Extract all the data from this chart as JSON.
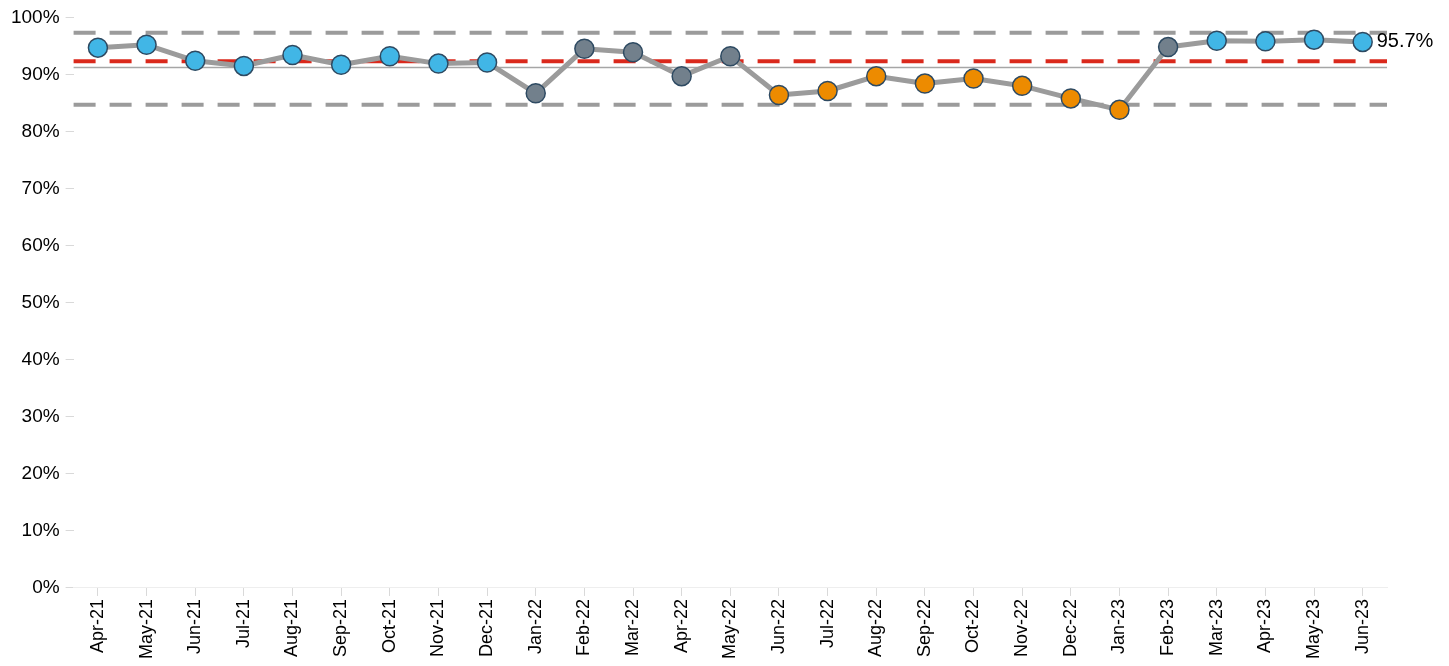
{
  "chart_data": {
    "type": "line",
    "categories": [
      "Apr-21",
      "May-21",
      "Jun-21",
      "Jul-21",
      "Aug-21",
      "Sep-21",
      "Oct-21",
      "Nov-21",
      "Dec-21",
      "Jan-22",
      "Feb-22",
      "Mar-22",
      "Apr-22",
      "May-22",
      "Jun-22",
      "Jul-22",
      "Aug-22",
      "Sep-22",
      "Oct-22",
      "Nov-22",
      "Dec-22",
      "Jan-23",
      "Feb-23",
      "Mar-23",
      "Apr-23",
      "May-23",
      "Jun-23"
    ],
    "series": [
      {
        "color": "#9b9b9b",
        "values": [
          94.7,
          95.2,
          92.4,
          91.5,
          93.4,
          91.7,
          93.2,
          91.9,
          92.1,
          86.7,
          94.5,
          93.9,
          89.7,
          93.2,
          86.4,
          87.1,
          89.7,
          88.4,
          89.3,
          88.0,
          85.8,
          83.8,
          94.8,
          95.9,
          95.8,
          96.1,
          95.7
        ],
        "colors": [
          "#41b6e6",
          "#41b6e6",
          "#41b6e6",
          "#41b6e6",
          "#41b6e6",
          "#41b6e6",
          "#41b6e6",
          "#41b6e6",
          "#41b6e6",
          "#72808c",
          "#72808c",
          "#72808c",
          "#72808c",
          "#72808c",
          "#ed8b00",
          "#ed8b00",
          "#ed8b00",
          "#ed8b00",
          "#ed8b00",
          "#ed8b00",
          "#ed8b00",
          "#ed8b00",
          "#72808c",
          "#41b6e6",
          "#41b6e6",
          "#41b6e6",
          "#41b6e6"
        ],
        "value_labels": [
          null,
          null,
          null,
          null,
          null,
          null,
          null,
          null,
          null,
          null,
          null,
          null,
          null,
          null,
          null,
          null,
          null,
          null,
          null,
          null,
          null,
          null,
          null,
          null,
          null,
          null,
          "95.7%"
        ]
      }
    ],
    "ylim": [
      0,
      100
    ],
    "yticks": [
      {
        "value": 0,
        "label": "0%"
      },
      {
        "value": 10,
        "label": "10%"
      },
      {
        "value": 20,
        "label": "20%"
      },
      {
        "value": 30,
        "label": "30%"
      },
      {
        "value": 40,
        "label": "40%"
      },
      {
        "value": 50,
        "label": "50%"
      },
      {
        "value": 60,
        "label": "60%"
      },
      {
        "value": 70,
        "label": "70%"
      },
      {
        "value": 80,
        "label": "80%"
      },
      {
        "value": 90,
        "label": "90%"
      },
      {
        "value": 100,
        "label": "100%"
      }
    ],
    "ref_lines": [
      {
        "axis": "y",
        "value": 97.3,
        "color": "#9b9b9b",
        "line_style": "dashed"
      },
      {
        "axis": "y",
        "value": 84.7,
        "color": "#9b9b9b",
        "line_style": "dashed"
      },
      {
        "axis": "y",
        "value": 92.3,
        "color": "#da291c",
        "line_style": "dashed"
      },
      {
        "axis": "y",
        "value": 91.2,
        "color": "#a6a6a6",
        "line_style": "solid"
      }
    ],
    "grid": false,
    "legend": false,
    "marker": "circle",
    "line_style": "solid"
  }
}
